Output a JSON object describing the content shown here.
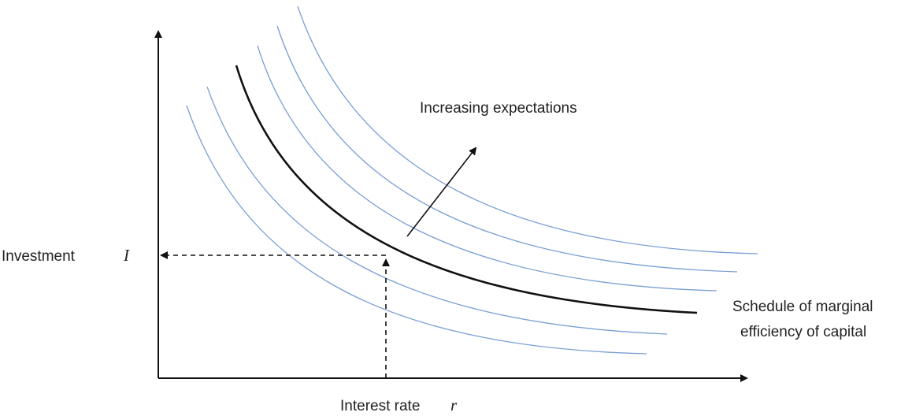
{
  "diagram": {
    "arrow_label": "Increasing expectations",
    "y_axis_label": "Investment",
    "y_axis_symbol": "I",
    "x_axis_label": "Interest rate",
    "x_axis_symbol": "r",
    "curve_label_line1": "Schedule of marginal",
    "curve_label_line2": "efficiency of capital"
  },
  "colors": {
    "axis": "#111111",
    "main_curve": "#111111",
    "shifted_curves": "#7a9fd4",
    "dashed_guides": "#111111"
  }
}
